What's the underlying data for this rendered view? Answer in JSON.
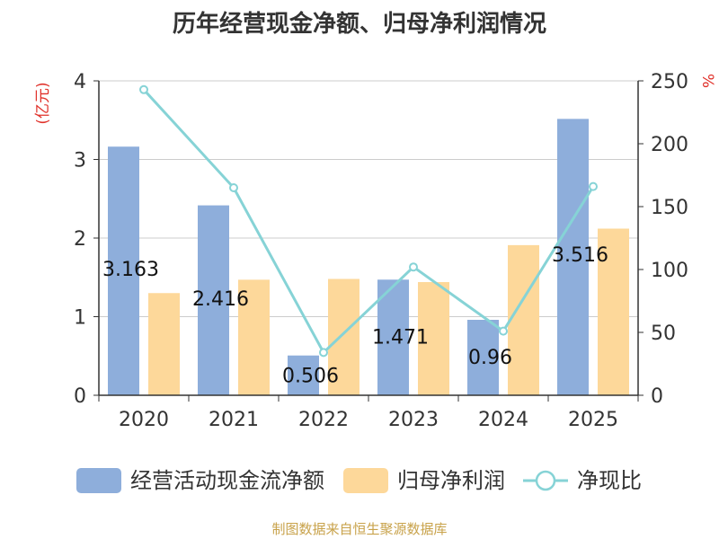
{
  "chart_data": {
    "type": "bar+line",
    "title": "历年经营现金净额、归母净利润情况",
    "categories": [
      "2020",
      "2021",
      "2022",
      "2023",
      "2024",
      "2025"
    ],
    "left_axis": {
      "unit_label": "(亿元)",
      "ylim": [
        0,
        4
      ],
      "ticks": [
        0,
        1,
        2,
        3,
        4
      ]
    },
    "right_axis": {
      "unit_label": "%",
      "ylim": [
        0,
        250
      ],
      "ticks": [
        0,
        50,
        100,
        150,
        200,
        250
      ]
    },
    "series": [
      {
        "name": "经营活动现金流净额",
        "type": "bar",
        "axis": "left",
        "color": "#8eaedb",
        "values": [
          3.163,
          2.416,
          0.506,
          1.471,
          0.96,
          3.516
        ],
        "labels": [
          "3.163",
          "2.416",
          "0.506",
          "1.471",
          "0.96",
          "3.516"
        ]
      },
      {
        "name": "归母净利润",
        "type": "bar",
        "axis": "left",
        "color": "#fdd89a",
        "values": [
          1.3,
          1.47,
          1.48,
          1.44,
          1.91,
          2.12
        ]
      },
      {
        "name": "净现比",
        "type": "line",
        "axis": "right",
        "color": "#86d3d6",
        "values": [
          243,
          165,
          34,
          102,
          51,
          166
        ]
      }
    ],
    "legend_position": "bottom",
    "grid": true
  },
  "footer": {
    "source": "制图数据来自恒生聚源数据库"
  }
}
